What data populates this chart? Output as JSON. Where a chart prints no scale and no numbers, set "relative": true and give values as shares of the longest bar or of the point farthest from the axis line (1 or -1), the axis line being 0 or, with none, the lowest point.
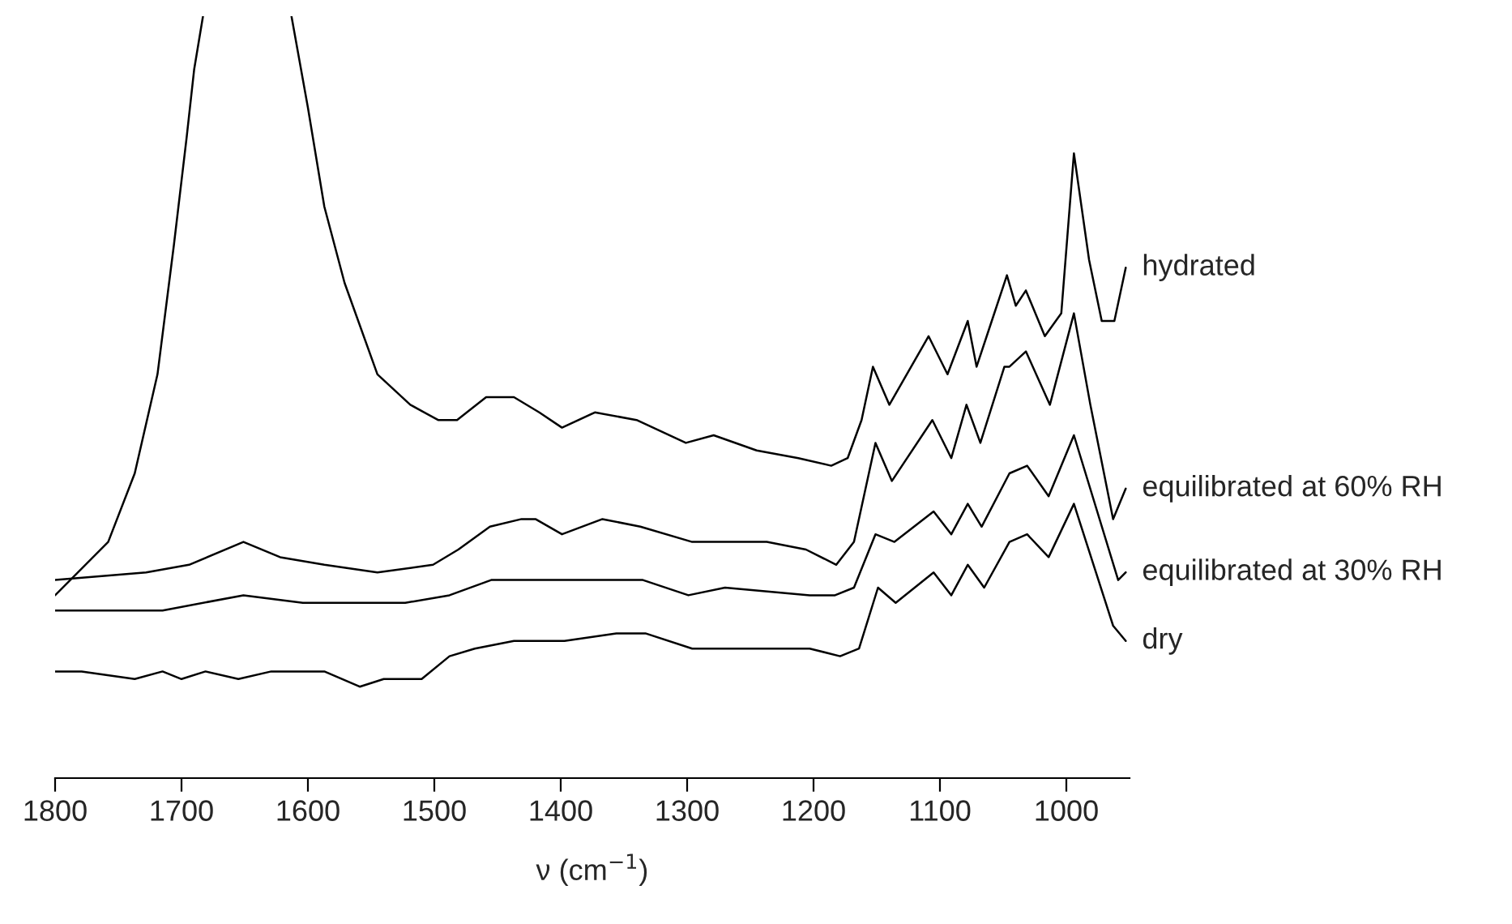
{
  "chart_data": {
    "type": "line",
    "relative": true,
    "xlabel": "ν (cm$^{−1}$)",
    "xlim": [
      1800,
      950
    ],
    "xticks": [
      1800,
      1700,
      1600,
      1500,
      1400,
      1300,
      1200,
      1100,
      1000
    ],
    "grid": false,
    "legend": false,
    "marker": "none",
    "line_style": "solid",
    "series": [
      {
        "name": "hydrated",
        "color": "#000000",
        "x": [
          1800,
          1758,
          1737,
          1719,
          1706,
          1696,
          1690,
          1683,
          1650,
          1613,
          1600,
          1587,
          1571,
          1545,
          1519,
          1497,
          1482,
          1459,
          1437,
          1417,
          1399,
          1373,
          1340,
          1301,
          1279,
          1245,
          1212,
          1186,
          1173,
          1162,
          1153,
          1140,
          1109,
          1094,
          1078,
          1071,
          1059,
          1047,
          1040,
          1032,
          1017,
          1004,
          994,
          982,
          972,
          962,
          953
        ],
        "values": [
          0.24,
          0.31,
          0.4,
          0.53,
          0.7,
          0.84,
          0.93,
          1.0,
          null,
          1.0,
          0.88,
          0.75,
          0.65,
          0.53,
          0.49,
          0.47,
          0.47,
          0.5,
          0.5,
          0.48,
          0.46,
          0.48,
          0.47,
          0.44,
          0.45,
          0.43,
          0.42,
          0.41,
          0.42,
          0.47,
          0.54,
          0.49,
          0.58,
          0.53,
          0.6,
          0.54,
          0.6,
          0.66,
          0.62,
          0.64,
          0.58,
          0.61,
          0.82,
          0.68,
          0.6,
          0.6,
          0.67
        ]
      },
      {
        "name": "equilibrated at 60% RH",
        "color": "#000000",
        "x": [
          1800,
          1728,
          1694,
          1651,
          1622,
          1587,
          1545,
          1501,
          1481,
          1456,
          1431,
          1420,
          1399,
          1367,
          1337,
          1296,
          1270,
          1237,
          1206,
          1182,
          1168,
          1151,
          1138,
          1106,
          1091,
          1079,
          1068,
          1049,
          1045,
          1032,
          1013,
          994,
          981,
          963,
          953
        ],
        "values": [
          0.26,
          0.27,
          0.28,
          0.31,
          0.29,
          0.28,
          0.27,
          0.28,
          0.3,
          0.33,
          0.34,
          0.34,
          0.32,
          0.34,
          0.33,
          0.31,
          0.31,
          0.31,
          0.3,
          0.28,
          0.31,
          0.44,
          0.39,
          0.47,
          0.42,
          0.49,
          0.44,
          0.54,
          0.54,
          0.56,
          0.49,
          0.61,
          0.49,
          0.34,
          0.38
        ]
      },
      {
        "name": "equilibrated at 30% RH",
        "color": "#000000",
        "x": [
          1800,
          1715,
          1651,
          1604,
          1523,
          1488,
          1455,
          1429,
          1399,
          1369,
          1335,
          1299,
          1270,
          1203,
          1183,
          1168,
          1151,
          1136,
          1105,
          1091,
          1078,
          1067,
          1045,
          1031,
          1014,
          994,
          959,
          953
        ],
        "values": [
          0.22,
          0.22,
          0.24,
          0.23,
          0.23,
          0.24,
          0.26,
          0.26,
          0.26,
          0.26,
          0.26,
          0.24,
          0.25,
          0.24,
          0.24,
          0.25,
          0.32,
          0.31,
          0.35,
          0.32,
          0.36,
          0.33,
          0.4,
          0.41,
          0.37,
          0.45,
          0.26,
          0.27
        ]
      },
      {
        "name": "dry",
        "color": "#000000",
        "x": [
          1800,
          1779,
          1737,
          1715,
          1700,
          1681,
          1655,
          1629,
          1587,
          1559,
          1540,
          1510,
          1488,
          1468,
          1437,
          1417,
          1397,
          1356,
          1333,
          1296,
          1270,
          1203,
          1179,
          1164,
          1149,
          1135,
          1105,
          1091,
          1078,
          1065,
          1045,
          1031,
          1014,
          994,
          963,
          953
        ],
        "values": [
          0.14,
          0.14,
          0.13,
          0.14,
          0.13,
          0.14,
          0.13,
          0.14,
          0.14,
          0.12,
          0.13,
          0.13,
          0.16,
          0.17,
          0.18,
          0.18,
          0.18,
          0.19,
          0.19,
          0.17,
          0.17,
          0.17,
          0.16,
          0.17,
          0.25,
          0.23,
          0.27,
          0.24,
          0.28,
          0.25,
          0.31,
          0.32,
          0.29,
          0.36,
          0.2,
          0.18
        ]
      }
    ]
  }
}
